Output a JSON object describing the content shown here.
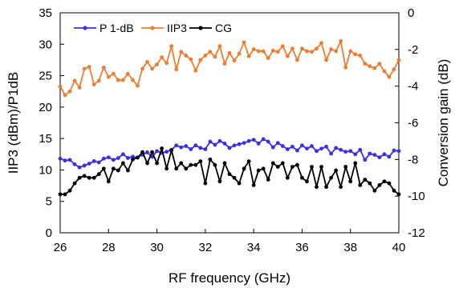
{
  "chart_data": {
    "type": "line",
    "xlabel": "RF frequency (GHz)",
    "ylabel_left": "IIP3 (dBm)/P1dB",
    "ylabel_right": "Conversion gain (dB)",
    "xlim": [
      26,
      40
    ],
    "ylim_left": [
      0,
      35
    ],
    "ylim_right": [
      -12,
      0
    ],
    "x_ticks": [
      26,
      28,
      30,
      32,
      34,
      36,
      38,
      40
    ],
    "y_ticks_left": [
      0,
      5,
      10,
      15,
      20,
      25,
      30,
      35
    ],
    "y_ticks_right": [
      -12,
      -10,
      -8,
      -6,
      -4,
      -2,
      0
    ],
    "grid": false,
    "legend_position": "top-left",
    "series": [
      {
        "name": "P 1-dB",
        "axis": "left",
        "color": "#3a2ee6",
        "marker": "circle",
        "x": [
          26,
          26.2,
          26.4,
          26.6,
          26.8,
          27,
          27.2,
          27.4,
          27.6,
          27.8,
          28,
          28.2,
          28.4,
          28.6,
          28.8,
          29,
          29.2,
          29.4,
          29.6,
          29.8,
          30,
          30.2,
          30.4,
          30.6,
          30.8,
          31,
          31.2,
          31.4,
          31.6,
          31.8,
          32,
          32.2,
          32.4,
          32.6,
          32.8,
          33,
          33.2,
          33.4,
          33.6,
          33.8,
          34,
          34.2,
          34.4,
          34.6,
          34.8,
          35,
          35.2,
          35.4,
          35.6,
          35.8,
          36,
          36.2,
          36.4,
          36.6,
          36.8,
          37,
          37.2,
          37.4,
          37.6,
          37.8,
          38,
          38.2,
          38.4,
          38.6,
          38.8,
          39,
          39.2,
          39.4,
          39.6,
          39.8,
          40
        ],
        "y": [
          11.8,
          11.5,
          11.6,
          10.9,
          10.4,
          10.7,
          11.0,
          11.4,
          11.2,
          11.8,
          12.0,
          11.6,
          11.9,
          12.5,
          11.9,
          12.1,
          12.0,
          12.4,
          12.8,
          12.1,
          13.0,
          12.7,
          12.9,
          13.2,
          13.9,
          13.6,
          13.8,
          13.3,
          13.9,
          13.5,
          13.3,
          14.5,
          14.0,
          14.6,
          14.2,
          13.5,
          13.9,
          14.1,
          14.3,
          14.6,
          14.8,
          14.2,
          14.9,
          14.5,
          13.6,
          14.3,
          13.8,
          13.3,
          13.7,
          13.1,
          13.9,
          13.4,
          13.8,
          13.0,
          13.4,
          13.7,
          12.6,
          13.5,
          13.2,
          12.9,
          13.0,
          12.5,
          13.2,
          11.6,
          12.6,
          12.4,
          12.0,
          12.5,
          12.1,
          13.1,
          13.0
        ]
      },
      {
        "name": "IIP3",
        "axis": "left",
        "color": "#ed7d31",
        "marker": "circle",
        "x": [
          26,
          26.2,
          26.4,
          26.6,
          26.8,
          27,
          27.2,
          27.4,
          27.6,
          27.8,
          28,
          28.2,
          28.4,
          28.6,
          28.8,
          29,
          29.2,
          29.4,
          29.6,
          29.8,
          30,
          30.2,
          30.4,
          30.6,
          30.8,
          31,
          31.2,
          31.4,
          31.6,
          31.8,
          32,
          32.2,
          32.4,
          32.6,
          32.8,
          33,
          33.2,
          33.4,
          33.6,
          33.8,
          34,
          34.2,
          34.4,
          34.6,
          34.8,
          35,
          35.2,
          35.4,
          35.6,
          35.8,
          36,
          36.2,
          36.4,
          36.6,
          36.8,
          37,
          37.2,
          37.4,
          37.6,
          37.8,
          38,
          38.2,
          38.4,
          38.6,
          38.8,
          39,
          39.2,
          39.4,
          39.6,
          39.8,
          40
        ],
        "y": [
          23.3,
          21.9,
          22.5,
          24.2,
          23.1,
          26.1,
          26.4,
          23.6,
          24.2,
          26.3,
          24.8,
          25.3,
          24.3,
          24.3,
          25.3,
          24.3,
          23.4,
          26.1,
          27.2,
          26.1,
          26.8,
          27.9,
          27.0,
          29.7,
          26.0,
          28.8,
          28.2,
          27.6,
          25.8,
          27.5,
          28.2,
          28.8,
          28.0,
          29.7,
          26.9,
          28.6,
          27.4,
          28.5,
          30.3,
          28.1,
          29.2,
          28.9,
          28.9,
          27.8,
          29.0,
          28.8,
          29.7,
          28.1,
          29.3,
          27.5,
          29.3,
          28.9,
          28.8,
          29.3,
          30.2,
          27.5,
          29.2,
          28.9,
          30.5,
          26.3,
          28.9,
          28.4,
          28.2,
          26.9,
          26.5,
          26.2,
          26.9,
          25.7,
          24.8,
          26.0,
          27.5
        ]
      },
      {
        "name": "CG",
        "axis": "right",
        "color": "#000000",
        "marker": "circle",
        "x": [
          26,
          26.2,
          26.4,
          26.6,
          26.8,
          27,
          27.2,
          27.4,
          27.6,
          27.8,
          28,
          28.2,
          28.4,
          28.6,
          28.8,
          29,
          29.2,
          29.4,
          29.6,
          29.8,
          30,
          30.2,
          30.4,
          30.6,
          30.8,
          31,
          31.2,
          31.4,
          31.6,
          31.8,
          32,
          32.2,
          32.4,
          32.6,
          32.8,
          33,
          33.2,
          33.4,
          33.6,
          33.8,
          34,
          34.2,
          34.4,
          34.6,
          34.8,
          35,
          35.2,
          35.4,
          35.6,
          35.8,
          36,
          36.2,
          36.4,
          36.6,
          36.8,
          37,
          37.2,
          37.4,
          37.6,
          37.8,
          38,
          38.2,
          38.4,
          38.6,
          38.8,
          39,
          39.2,
          39.4,
          39.6,
          39.8,
          40
        ],
        "y": [
          -9.9,
          -9.9,
          -9.7,
          -9.3,
          -9.0,
          -8.9,
          -9.0,
          -9.0,
          -8.8,
          -8.5,
          -9.2,
          -8.5,
          -8.6,
          -8.2,
          -8.6,
          -8.0,
          -7.9,
          -7.6,
          -8.2,
          -7.6,
          -8.2,
          -7.4,
          -8.5,
          -7.5,
          -8.5,
          -8.2,
          -8.5,
          -8.3,
          -8.3,
          -8.1,
          -9.3,
          -8.0,
          -8.3,
          -9.2,
          -8.2,
          -8.8,
          -9.0,
          -9.3,
          -8.5,
          -8.1,
          -9.4,
          -8.6,
          -8.5,
          -9.1,
          -8.2,
          -8.4,
          -8.2,
          -9.0,
          -8.4,
          -8.3,
          -9.0,
          -9.2,
          -8.4,
          -9.5,
          -8.4,
          -9.5,
          -9.0,
          -8.6,
          -9.5,
          -8.4,
          -9.2,
          -8.2,
          -9.4,
          -9.1,
          -9.3,
          -9.7,
          -9.4,
          -9.2,
          -9.3,
          -9.7,
          -9.9
        ]
      }
    ]
  }
}
